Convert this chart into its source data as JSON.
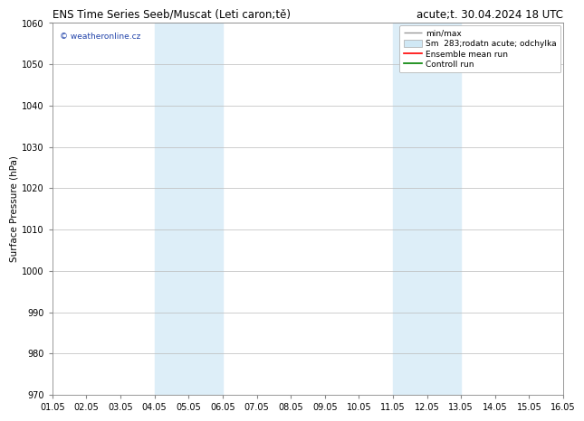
{
  "title_left": "ENS Time Series Seeb/Muscat (Leti caron;tě)",
  "title_right": "acute;t. 30.04.2024 18 UTC",
  "ylabel": "Surface Pressure (hPa)",
  "ylim": [
    970,
    1060
  ],
  "yticks": [
    970,
    980,
    990,
    1000,
    1010,
    1020,
    1030,
    1040,
    1050,
    1060
  ],
  "xlim": [
    0,
    15
  ],
  "xtick_labels": [
    "01.05",
    "02.05",
    "03.05",
    "04.05",
    "05.05",
    "06.05",
    "07.05",
    "08.05",
    "09.05",
    "10.05",
    "11.05",
    "12.05",
    "13.05",
    "14.05",
    "15.05",
    "16.05"
  ],
  "shaded_regions": [
    {
      "xstart": 3.0,
      "xend": 5.0
    },
    {
      "xstart": 10.0,
      "xend": 12.0
    }
  ],
  "watermark": "© weatheronline.cz",
  "legend_labels": [
    "min/max",
    "Sm  283;rodatn acute; odchylka",
    "Ensemble mean run",
    "Controll run"
  ],
  "bg_color": "#ffffff",
  "plot_bg_color": "#ffffff",
  "shaded_color": "#ddeef8",
  "grid_color": "#bbbbbb",
  "title_fontsize": 8.5,
  "ylabel_fontsize": 7.5,
  "tick_fontsize": 7,
  "legend_fontsize": 6.5,
  "watermark_fontsize": 6.5,
  "line_colors": [
    "#aaaaaa",
    "#ccddee",
    "red",
    "green"
  ]
}
